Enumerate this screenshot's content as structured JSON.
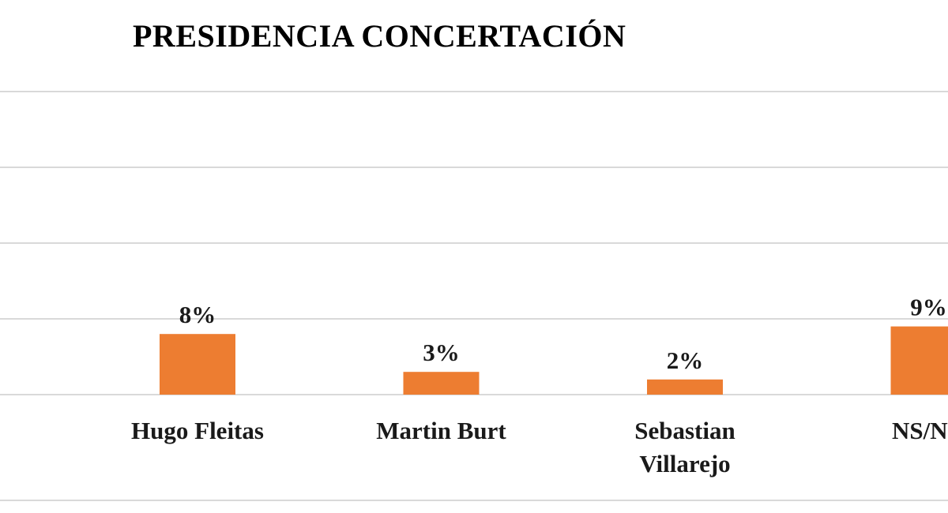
{
  "chart_data": {
    "type": "bar",
    "title": "PRESIDENCIA CONCERTACIÓN",
    "xlabel": "",
    "ylabel": "",
    "categories": [
      "Hugo Fleitas",
      "Martin Burt",
      "Sebastian Villarejo",
      "NS/NR"
    ],
    "category_lines": [
      [
        "Hugo Fleitas"
      ],
      [
        "Martin Burt"
      ],
      [
        "Sebastian",
        "Villarejo"
      ],
      [
        "NS/NR"
      ]
    ],
    "values": [
      8,
      3,
      2,
      9
    ],
    "data_labels": [
      "8%",
      "3%",
      "2%",
      "9%"
    ],
    "ylim": [
      0,
      40
    ],
    "grid": true,
    "legend": "none",
    "bar_color": "#ED7D31",
    "grid_color": "#D9D9D9"
  }
}
